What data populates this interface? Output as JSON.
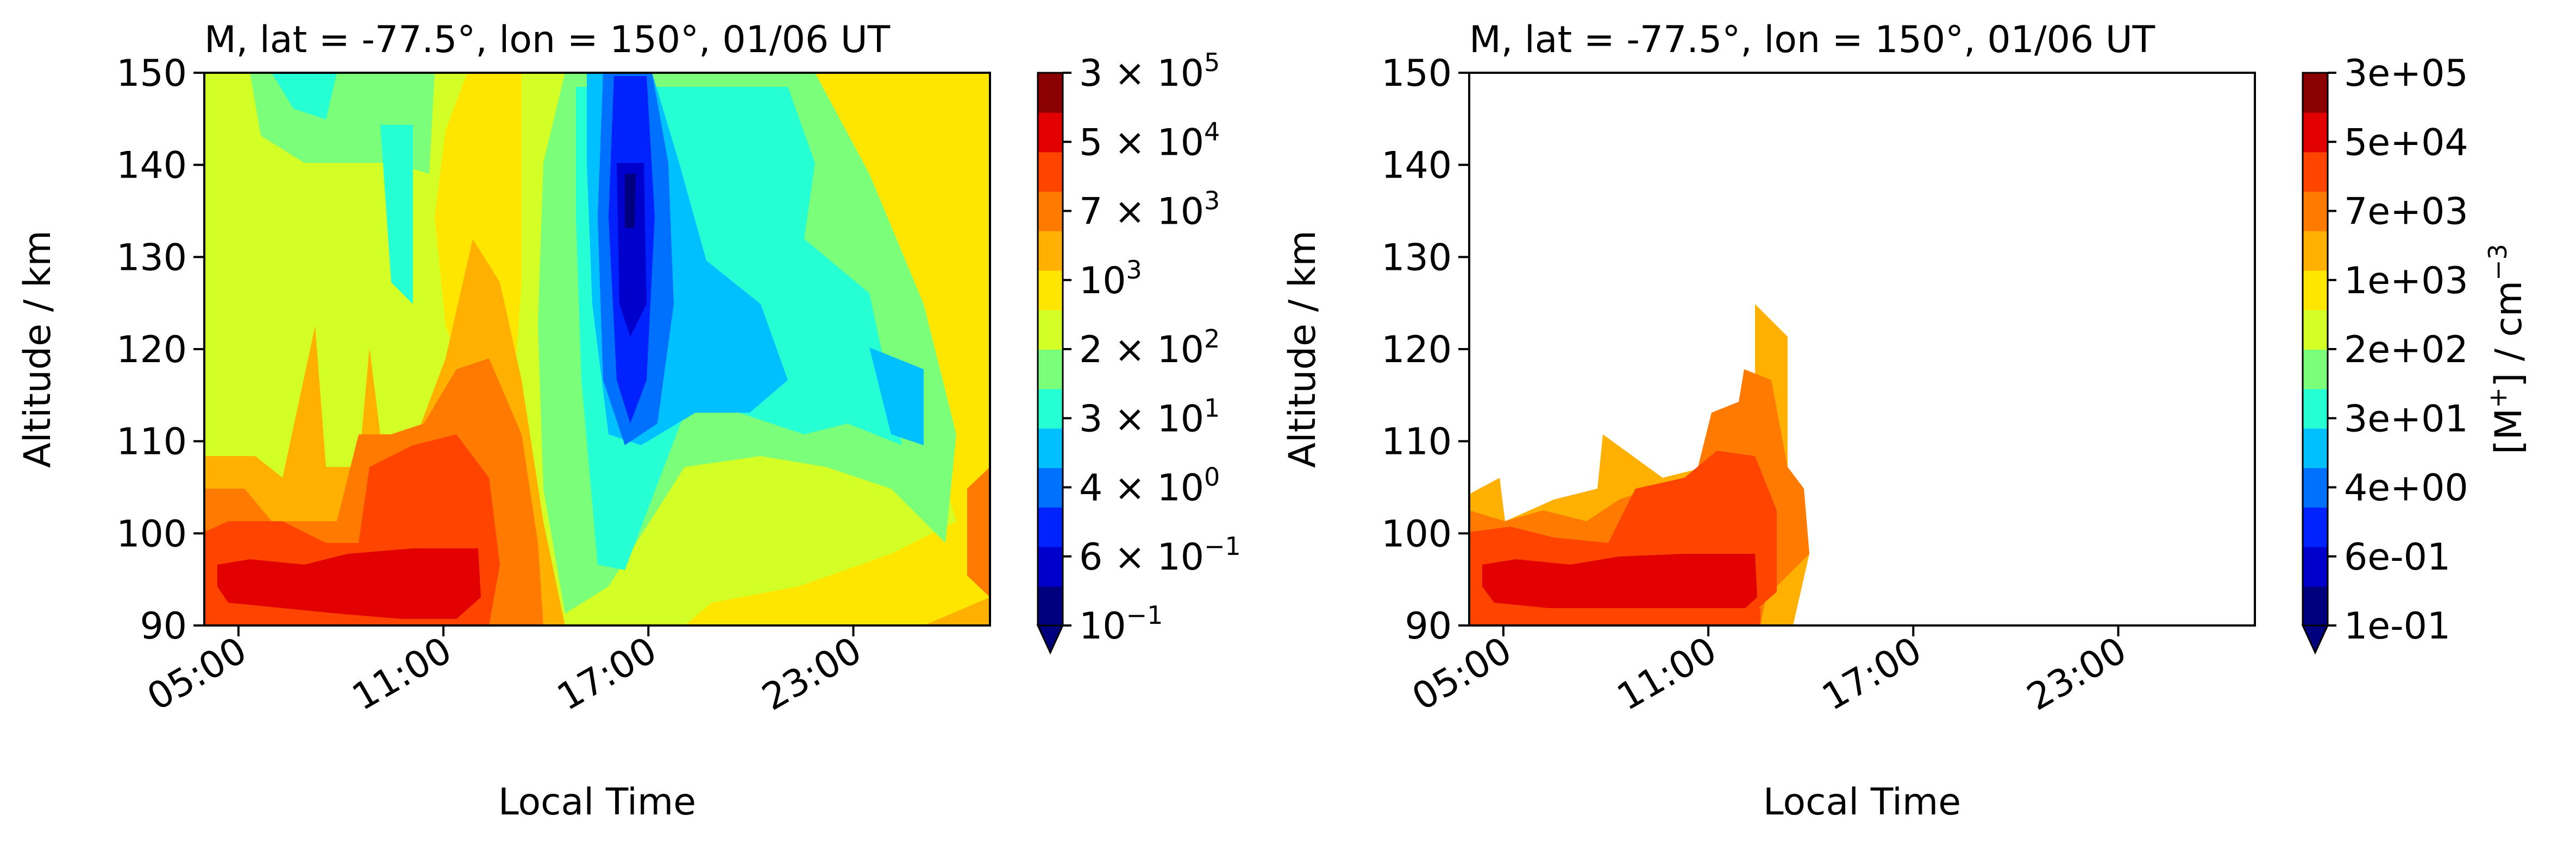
{
  "figure": {
    "panels": [
      "left",
      "right"
    ]
  },
  "chart_data": [
    {
      "type": "heatmap",
      "title": "M, lat = -77.5°, lon = 150°, 01/06 UT",
      "xlabel": "Local Time",
      "ylabel": "Altitude / km",
      "x_ticks": [
        "05:00",
        "11:00",
        "17:00",
        "23:00"
      ],
      "x_tick_hours": [
        5,
        11,
        17,
        23
      ],
      "xlim_hours": [
        4,
        27
      ],
      "ylim": [
        90,
        150
      ],
      "y_ticks": [
        90,
        100,
        110,
        120,
        130,
        140,
        150
      ],
      "colorbar": {
        "scale": "log",
        "label": "",
        "tick_labels": [
          {
            "mantissa": "3 × 10",
            "exp": "5"
          },
          {
            "mantissa": "5 × 10",
            "exp": "4"
          },
          {
            "mantissa": "7 × 10",
            "exp": "3"
          },
          {
            "mantissa": "10",
            "exp": "3"
          },
          {
            "mantissa": "2 × 10",
            "exp": "2"
          },
          {
            "mantissa": "3 × 10",
            "exp": "1"
          },
          {
            "mantissa": "4 × 10",
            "exp": "0"
          },
          {
            "mantissa": "6 × 10",
            "exp": "−1"
          },
          {
            "mantissa": "10",
            "exp": "−1"
          }
        ],
        "extend": "min"
      },
      "grid": false
    },
    {
      "type": "heatmap",
      "title": "M, lat = -77.5°, lon = 150°, 01/06 UT",
      "xlabel": "Local Time",
      "ylabel": "Altitude / km",
      "x_ticks": [
        "05:00",
        "11:00",
        "17:00",
        "23:00"
      ],
      "x_tick_hours": [
        5,
        11,
        17,
        23
      ],
      "xlim_hours": [
        4,
        27
      ],
      "ylim": [
        90,
        150
      ],
      "y_ticks": [
        90,
        100,
        110,
        120,
        130,
        140,
        150
      ],
      "colorbar": {
        "scale": "log",
        "label_parts": [
          "[M",
          "+",
          "] / cm",
          "−3"
        ],
        "tick_labels": [
          "3e+05",
          "5e+04",
          "7e+03",
          "1e+03",
          "2e+02",
          "3e+01",
          "4e+00",
          "6e-01",
          "1e-01"
        ],
        "extend": "min"
      },
      "grid": false
    }
  ],
  "colormap": [
    "#00007f",
    "#0000cc",
    "#0022ff",
    "#0070ff",
    "#00c0ff",
    "#26ffd4",
    "#7bff7b",
    "#d4ff26",
    "#ffe600",
    "#ffb000",
    "#ff7a00",
    "#ff4400",
    "#e30000",
    "#8b0000"
  ]
}
